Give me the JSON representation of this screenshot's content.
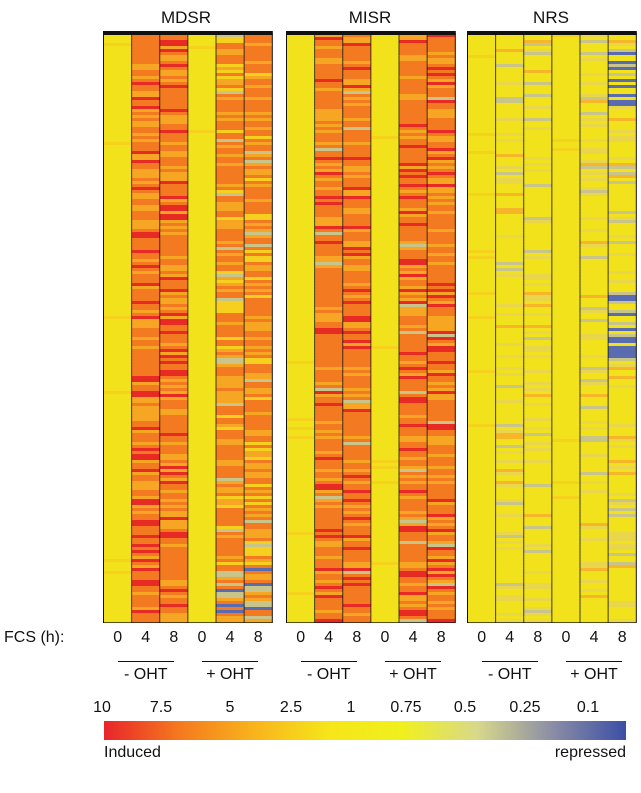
{
  "chart_data": {
    "type": "heatmap",
    "panels": [
      {
        "title": "MDSR",
        "profile": "mdsr"
      },
      {
        "title": "MISR",
        "profile": "misr"
      },
      {
        "title": "NRS",
        "profile": "nrs"
      }
    ],
    "row_axis_label": "FCS (h):",
    "time_points": [
      "0",
      "4",
      "8",
      "0",
      "4",
      "8"
    ],
    "groups": [
      "- OHT",
      "+ OHT"
    ],
    "colorscale": {
      "ticks": [
        "10",
        "7.5",
        "5",
        "2.5",
        "1",
        "0.75",
        "0.5",
        "0.25",
        "0.1"
      ],
      "low_label": "Induced",
      "high_label": "repressed",
      "colors": [
        "#e8252a",
        "#f5781f",
        "#f8b31c",
        "#f6e51a",
        "#f0f01c",
        "#d8d98a",
        "#8c8ea6",
        "#3b4fa6"
      ]
    }
  }
}
